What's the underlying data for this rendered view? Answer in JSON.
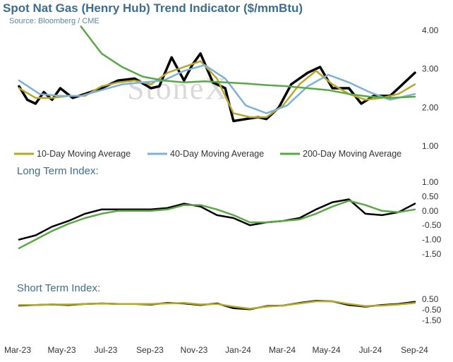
{
  "title": "Spot Nat Gas (Henry Hub) Trend Indicator ($/mmBtu)",
  "source": "Source: Bloomberg / CME",
  "watermark": "StoneX",
  "colors": {
    "spot": "#000000",
    "ma10": "#b5a829",
    "ma40": "#7fb0d8",
    "ma200": "#5aa845",
    "title": "#3d6d8c",
    "grid": "#bfbfbf"
  },
  "chart_data": [
    {
      "type": "line",
      "title": "Spot Nat Gas (Henry Hub) Trend Indicator ($/mmBtu)",
      "x_categories": [
        "Mar-23",
        "May-23",
        "Jul-23",
        "Sep-23",
        "Nov-23",
        "Jan-24",
        "Mar-24",
        "May-24",
        "Jul-24",
        "Sep-24"
      ],
      "yticks": [
        "4.00",
        "3.00",
        "2.00",
        "1.00"
      ],
      "ylim": [
        1.0,
        4.0
      ],
      "legend": [
        "10-Day Moving Average",
        "40-Day Moving Average",
        "200-Day Moving Average"
      ],
      "legend_position": "bottom",
      "series": [
        {
          "name": "",
          "color": "#000000",
          "x": [
            0,
            0.2,
            0.4,
            0.6,
            0.8,
            1,
            1.3,
            1.6,
            2,
            2.4,
            2.8,
            3.2,
            3.4,
            3.7,
            4,
            4.2,
            4.4,
            4.7,
            5,
            5.2,
            5.5,
            5.8,
            6,
            6.3,
            6.6,
            7,
            7.3,
            7.6,
            8,
            8.3,
            8.6,
            9,
            9.3,
            9.6
          ],
          "values": [
            2.55,
            2.2,
            2.1,
            2.4,
            2.2,
            2.5,
            2.25,
            2.35,
            2.5,
            2.7,
            2.75,
            2.5,
            2.55,
            3.3,
            2.7,
            3.1,
            3.4,
            2.65,
            2.5,
            1.65,
            1.7,
            1.75,
            1.7,
            2.0,
            2.6,
            2.9,
            3.05,
            2.5,
            2.5,
            2.1,
            2.3,
            2.3,
            2.6,
            2.9
          ]
        },
        {
          "name": "10-Day Moving Average",
          "color": "#b5a829",
          "x": [
            0,
            0.4,
            0.8,
            1.2,
            1.6,
            2,
            2.4,
            2.8,
            3.2,
            3.6,
            4,
            4.4,
            4.8,
            5.2,
            5.6,
            6,
            6.4,
            6.8,
            7.2,
            7.6,
            8,
            8.4,
            8.8,
            9.2,
            9.6
          ],
          "values": [
            2.5,
            2.25,
            2.25,
            2.3,
            2.3,
            2.55,
            2.65,
            2.7,
            2.6,
            2.9,
            3.05,
            3.2,
            2.75,
            1.85,
            1.75,
            1.75,
            2.05,
            2.6,
            2.95,
            2.6,
            2.35,
            2.2,
            2.25,
            2.35,
            2.6
          ]
        },
        {
          "name": "40-Day Moving Average",
          "color": "#7fb0d8",
          "x": [
            0,
            0.5,
            1,
            1.5,
            2,
            2.5,
            3,
            3.5,
            4,
            4.5,
            5,
            5.5,
            6,
            6.5,
            7,
            7.5,
            8,
            8.5,
            9,
            9.6
          ],
          "values": [
            2.7,
            2.35,
            2.3,
            2.3,
            2.45,
            2.6,
            2.65,
            2.7,
            2.95,
            3.1,
            2.75,
            2.05,
            1.85,
            2.05,
            2.55,
            2.85,
            2.65,
            2.4,
            2.2,
            2.35
          ]
        },
        {
          "name": "200-Day Moving Average",
          "color": "#5aa845",
          "x": [
            1.5,
            2,
            2.5,
            3,
            3.5,
            4,
            4.5,
            5,
            5.5,
            6,
            6.5,
            7,
            7.5,
            8,
            8.5,
            9,
            9.6
          ],
          "values": [
            4.1,
            3.4,
            3.05,
            2.8,
            2.7,
            2.65,
            2.68,
            2.65,
            2.62,
            2.58,
            2.55,
            2.5,
            2.45,
            2.35,
            2.28,
            2.25,
            2.28
          ]
        }
      ]
    },
    {
      "type": "line",
      "title": "Long Term Index:",
      "yticks": [
        "1.00",
        "0.50",
        "0.00",
        "-0.50",
        "-1.00",
        "-1.50"
      ],
      "ylim": [
        -1.5,
        1.0
      ],
      "series": [
        {
          "name": "",
          "color": "#000000",
          "x": [
            0,
            0.4,
            0.8,
            1.2,
            1.6,
            2,
            2.4,
            2.8,
            3.2,
            3.6,
            4,
            4.4,
            4.8,
            5.2,
            5.6,
            6,
            6.4,
            6.8,
            7.2,
            7.6,
            8,
            8.4,
            8.8,
            9.2,
            9.6
          ],
          "values": [
            -1.0,
            -0.85,
            -0.55,
            -0.35,
            -0.1,
            0.05,
            0.05,
            0.05,
            0.05,
            0.1,
            0.25,
            0.15,
            -0.15,
            -0.25,
            -0.5,
            -0.4,
            -0.35,
            -0.25,
            0.05,
            0.3,
            0.4,
            -0.1,
            -0.15,
            -0.05,
            0.25
          ]
        },
        {
          "name": "",
          "color": "#5aa845",
          "x": [
            0,
            0.4,
            0.8,
            1.2,
            1.6,
            2,
            2.4,
            2.8,
            3.2,
            3.6,
            4,
            4.4,
            4.8,
            5.2,
            5.6,
            6,
            6.4,
            6.8,
            7.2,
            7.6,
            8,
            8.4,
            8.8,
            9.2,
            9.6
          ],
          "values": [
            -1.3,
            -1.0,
            -0.7,
            -0.45,
            -0.25,
            -0.1,
            0.0,
            0.0,
            0.0,
            0.05,
            0.2,
            0.2,
            0.05,
            -0.15,
            -0.4,
            -0.4,
            -0.35,
            -0.3,
            -0.1,
            0.15,
            0.35,
            0.2,
            0.0,
            -0.05,
            0.05
          ]
        }
      ]
    },
    {
      "type": "line",
      "title": "Short Term Index:",
      "yticks": [
        "0.50",
        "-0.50",
        "-1.50"
      ],
      "ylim": [
        -1.5,
        0.5
      ],
      "series": [
        {
          "name": "",
          "color": "#000000",
          "x": [
            0,
            0.4,
            0.8,
            1.2,
            1.6,
            2,
            2.4,
            2.8,
            3.2,
            3.6,
            4,
            4.4,
            4.8,
            5.2,
            5.6,
            6,
            6.4,
            6.8,
            7.2,
            7.6,
            8,
            8.4,
            8.8,
            9.2,
            9.6
          ],
          "values": [
            -0.1,
            -0.05,
            0.0,
            -0.05,
            0.05,
            0.1,
            0.05,
            0.05,
            0.0,
            0.15,
            0.1,
            -0.05,
            0.1,
            -0.35,
            -0.45,
            -0.15,
            -0.1,
            0.15,
            0.35,
            0.3,
            -0.05,
            -0.2,
            -0.05,
            0.05,
            0.25
          ]
        },
        {
          "name": "",
          "color": "#b5a829",
          "x": [
            0,
            0.4,
            0.8,
            1.2,
            1.6,
            2,
            2.4,
            2.8,
            3.2,
            3.6,
            4,
            4.4,
            4.8,
            5.2,
            5.6,
            6,
            6.4,
            6.8,
            7.2,
            7.6,
            8,
            8.4,
            8.8,
            9.2,
            9.6
          ],
          "values": [
            -0.05,
            -0.05,
            0.0,
            0.0,
            0.05,
            0.1,
            0.05,
            0.05,
            0.05,
            0.1,
            0.15,
            0.0,
            0.05,
            -0.2,
            -0.4,
            -0.2,
            -0.1,
            0.1,
            0.3,
            0.3,
            0.05,
            -0.15,
            -0.1,
            0.0,
            0.15
          ]
        }
      ]
    }
  ]
}
